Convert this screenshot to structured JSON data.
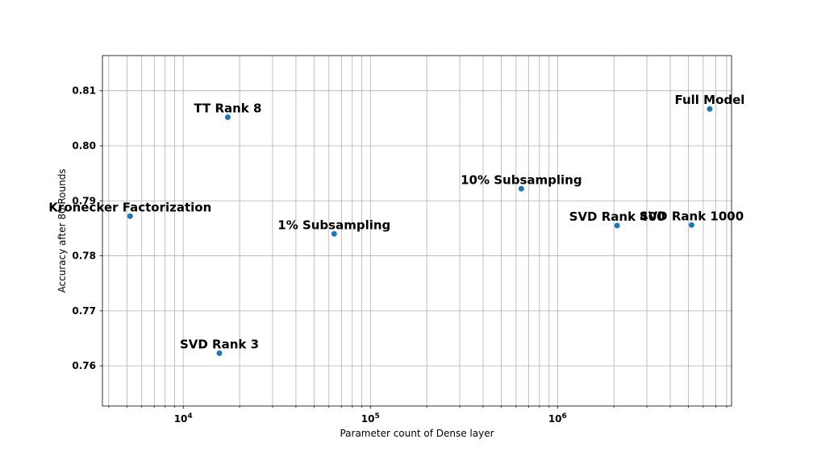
{
  "chart_data": {
    "type": "scatter",
    "xlabel": "Parameter count of Dense layer",
    "ylabel": "Accuracy after 80 Rounds",
    "xscale": "log",
    "xlim": [
      3700,
      8500000
    ],
    "ylim": [
      0.7527,
      0.8164
    ],
    "grid": "major and minor",
    "marker_color": "#1f77b4",
    "x_ticks": [
      {
        "value": 10000,
        "base": "10",
        "exp": "4"
      },
      {
        "value": 100000,
        "base": "10",
        "exp": "5"
      },
      {
        "value": 1000000,
        "base": "10",
        "exp": "6"
      }
    ],
    "y_ticks": [
      {
        "value": 0.76,
        "label": "0.76"
      },
      {
        "value": 0.77,
        "label": "0.77"
      },
      {
        "value": 0.78,
        "label": "0.78"
      },
      {
        "value": 0.79,
        "label": "0.79"
      },
      {
        "value": 0.8,
        "label": "0.80"
      },
      {
        "value": 0.81,
        "label": "0.81"
      }
    ],
    "points": [
      {
        "label": "Kronecker Factorization",
        "x": 5200,
        "y": 0.7872
      },
      {
        "label": "SVD Rank 3",
        "x": 15600,
        "y": 0.7623
      },
      {
        "label": "TT Rank 8",
        "x": 17300,
        "y": 0.8052
      },
      {
        "label": "1% Subsampling",
        "x": 64000,
        "y": 0.784
      },
      {
        "label": "10% Subsampling",
        "x": 640000,
        "y": 0.7922
      },
      {
        "label": "SVD Rank 400",
        "x": 2080000,
        "y": 0.7855
      },
      {
        "label": "SVD Rank 1000",
        "x": 5200000,
        "y": 0.7856
      },
      {
        "label": "Full Model",
        "x": 6500000,
        "y": 0.8067
      }
    ]
  }
}
